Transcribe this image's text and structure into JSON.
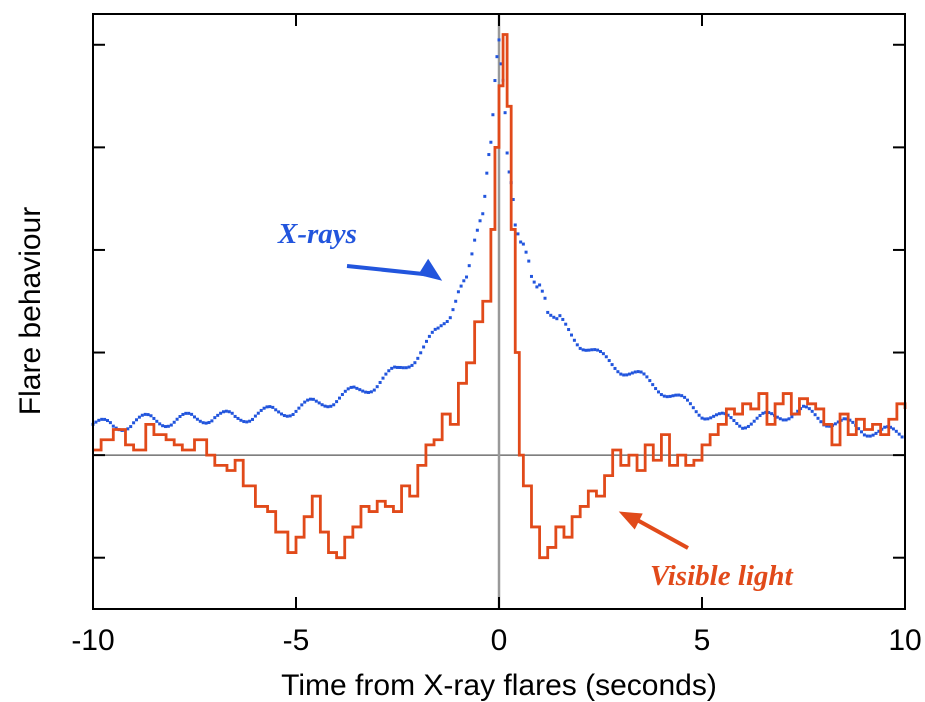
{
  "chart_data": {
    "type": "line",
    "xlabel": "Time from X-ray flares (seconds)",
    "ylabel": "Flare behaviour",
    "xlim": [
      -10,
      10
    ],
    "ylim": [
      -1.5,
      4.3
    ],
    "x_ticks": [
      -10,
      -5,
      0,
      5,
      10
    ],
    "x_tick_labels": [
      "-10",
      "-5",
      "0",
      "5",
      "10"
    ],
    "y_ticks": [
      -1,
      0,
      1,
      2,
      3,
      4
    ],
    "y_tick_labels": [
      "",
      "",
      "",
      "",
      "",
      ""
    ],
    "reference_lines": {
      "horizontal_y": 0,
      "vertical_x": 0
    },
    "grid": false,
    "colors": {
      "xray": "#2255dd",
      "visible": "#e14a1a",
      "frame": "#000000",
      "refline": "#999999"
    },
    "annotations": [
      {
        "text": "X-rays",
        "color": "#2255dd",
        "points_to": [
          -1.4,
          1.7
        ]
      },
      {
        "text": "Visible light",
        "color": "#e14a1a",
        "points_to": [
          2.85,
          -0.55
        ]
      }
    ],
    "series": [
      {
        "style": "dotted",
        "color": "#2255dd",
        "x": [
          -10,
          -9.5,
          -9,
          -8.5,
          -8,
          -7.5,
          -7,
          -6.5,
          -6,
          -5.5,
          -5,
          -4.5,
          -4,
          -3.5,
          -3,
          -2.5,
          -2,
          -1.5,
          -1.2,
          -1,
          -0.8,
          -0.6,
          -0.4,
          -0.3,
          -0.2,
          -0.1,
          0,
          0.1,
          0.2,
          0.3,
          0.4,
          0.6,
          0.8,
          1,
          1.2,
          1.5,
          2,
          2.5,
          3,
          3.5,
          4,
          4.5,
          5,
          5.5,
          6,
          6.5,
          7,
          7.5,
          8,
          8.5,
          9,
          9.5,
          10
        ],
        "y": [
          0.3,
          0.28,
          0.32,
          0.35,
          0.33,
          0.36,
          0.38,
          0.36,
          0.4,
          0.42,
          0.45,
          0.5,
          0.55,
          0.62,
          0.7,
          0.82,
          0.98,
          1.2,
          1.38,
          1.55,
          1.78,
          2.05,
          2.4,
          2.7,
          3.1,
          3.6,
          4.1,
          3.6,
          3.0,
          2.6,
          2.3,
          2.0,
          1.8,
          1.6,
          1.45,
          1.3,
          1.1,
          0.95,
          0.85,
          0.75,
          0.65,
          0.52,
          0.42,
          0.35,
          0.32,
          0.35,
          0.4,
          0.42,
          0.35,
          0.3,
          0.25,
          0.22,
          0.2
        ]
      },
      {
        "style": "solid",
        "color": "#e14a1a",
        "x": [
          -10,
          -9.8,
          -9.5,
          -9.2,
          -9,
          -8.7,
          -8.5,
          -8.2,
          -8,
          -7.8,
          -7.5,
          -7.2,
          -7,
          -6.7,
          -6.5,
          -6.3,
          -6,
          -5.7,
          -5.5,
          -5.2,
          -5,
          -4.8,
          -4.6,
          -4.4,
          -4.2,
          -4,
          -3.8,
          -3.6,
          -3.4,
          -3.2,
          -3,
          -2.8,
          -2.6,
          -2.4,
          -2.2,
          -2,
          -1.8,
          -1.6,
          -1.4,
          -1.2,
          -1,
          -0.8,
          -0.6,
          -0.4,
          -0.2,
          -0.1,
          0,
          0.1,
          0.2,
          0.3,
          0.4,
          0.5,
          0.6,
          0.8,
          1,
          1.2,
          1.4,
          1.6,
          1.8,
          2,
          2.2,
          2.4,
          2.6,
          2.8,
          3,
          3.2,
          3.4,
          3.6,
          3.8,
          4,
          4.2,
          4.4,
          4.6,
          4.8,
          5,
          5.2,
          5.4,
          5.6,
          5.8,
          6,
          6.2,
          6.4,
          6.6,
          6.8,
          7,
          7.2,
          7.4,
          7.6,
          7.8,
          8,
          8.2,
          8.4,
          8.6,
          8.8,
          9,
          9.2,
          9.4,
          9.6,
          9.8,
          10
        ],
        "y": [
          0.05,
          0.15,
          0.25,
          0.1,
          0.05,
          0.3,
          0.2,
          0.15,
          0.1,
          0.05,
          0.15,
          0.0,
          -0.1,
          -0.15,
          -0.05,
          -0.3,
          -0.5,
          -0.55,
          -0.75,
          -0.95,
          -0.8,
          -0.6,
          -0.4,
          -0.75,
          -0.95,
          -1.0,
          -0.8,
          -0.7,
          -0.5,
          -0.55,
          -0.45,
          -0.5,
          -0.55,
          -0.3,
          -0.4,
          -0.1,
          0.1,
          0.15,
          0.4,
          0.3,
          0.7,
          0.9,
          1.3,
          1.5,
          2.2,
          3.0,
          3.6,
          4.1,
          3.4,
          2.2,
          1.0,
          0.0,
          -0.3,
          -0.7,
          -1.0,
          -0.9,
          -0.7,
          -0.8,
          -0.6,
          -0.5,
          -0.35,
          -0.4,
          -0.2,
          0.05,
          -0.1,
          0.0,
          -0.15,
          0.1,
          -0.05,
          0.2,
          -0.1,
          0.0,
          -0.1,
          -0.05,
          0.1,
          0.2,
          0.3,
          0.45,
          0.4,
          0.5,
          0.45,
          0.6,
          0.3,
          0.5,
          0.6,
          0.4,
          0.55,
          0.5,
          0.45,
          0.3,
          0.1,
          0.4,
          0.2,
          0.35,
          0.25,
          0.3,
          0.2,
          0.35,
          0.5,
          0.45
        ]
      }
    ]
  }
}
